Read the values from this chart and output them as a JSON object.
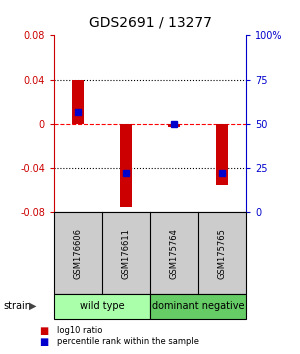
{
  "title": "GDS2691 / 13277",
  "samples": [
    "GSM176606",
    "GSM176611",
    "GSM175764",
    "GSM175765"
  ],
  "log10_ratio": [
    0.04,
    -0.075,
    -0.003,
    -0.055
  ],
  "percentile_rank": [
    0.57,
    0.22,
    0.5,
    0.22
  ],
  "bar_color": "#cc0000",
  "blue_color": "#0000cc",
  "ylim_left": [
    -0.08,
    0.08
  ],
  "ylim_right": [
    0,
    1
  ],
  "yticks_left": [
    -0.08,
    -0.04,
    0,
    0.04,
    0.08
  ],
  "yticks_right": [
    0,
    0.25,
    0.5,
    0.75,
    1.0
  ],
  "ytick_labels_right": [
    "0",
    "25",
    "50",
    "75",
    "100%"
  ],
  "ytick_labels_left": [
    "-0.08",
    "-0.04",
    "0",
    "0.04",
    "0.08"
  ],
  "hline_y": [
    0.04,
    0,
    -0.04
  ],
  "hline_styles": [
    "dotted",
    "dashed",
    "dotted"
  ],
  "hline_colors": [
    "black",
    "red",
    "black"
  ],
  "groups": [
    {
      "label": "wild type",
      "samples": [
        0,
        1
      ],
      "color": "#aaffaa"
    },
    {
      "label": "dominant negative",
      "samples": [
        2,
        3
      ],
      "color": "#66cc66"
    }
  ],
  "bar_width": 0.25,
  "legend_red_label": "log10 ratio",
  "legend_blue_label": "percentile rank within the sample",
  "strain_label": "strain",
  "blue_square_size": 4,
  "title_fontsize": 10,
  "axis_fontsize": 7,
  "label_fontsize": 6,
  "group_fontsize": 7,
  "sample_box_color": "#cccccc",
  "sample_box_edge": "#888888",
  "figure_facecolor": "#ffffff",
  "left_tick_color": "#cc0000",
  "right_tick_color": "#0000cc"
}
